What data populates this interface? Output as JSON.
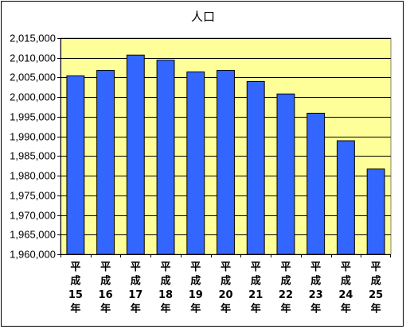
{
  "chart_data": {
    "type": "bar",
    "title": "人口",
    "categories": [
      [
        "平",
        "成",
        "15",
        "年"
      ],
      [
        "平",
        "成",
        "16",
        "年"
      ],
      [
        "平",
        "成",
        "17",
        "年"
      ],
      [
        "平",
        "成",
        "18",
        "年"
      ],
      [
        "平",
        "成",
        "19",
        "年"
      ],
      [
        "平",
        "成",
        "20",
        "年"
      ],
      [
        "平",
        "成",
        "21",
        "年"
      ],
      [
        "平",
        "成",
        "22",
        "年"
      ],
      [
        "平",
        "成",
        "23",
        "年"
      ],
      [
        "平",
        "成",
        "24",
        "年"
      ],
      [
        "平",
        "成",
        "25",
        "年"
      ]
    ],
    "values": [
      2005400,
      2006800,
      2010700,
      2009400,
      2006400,
      2006800,
      2004000,
      2000800,
      1995900,
      1988900,
      1981700
    ],
    "ylim": [
      1960000,
      2015000
    ],
    "yticks": [
      1960000,
      1965000,
      1970000,
      1975000,
      1980000,
      1985000,
      1990000,
      1995000,
      2000000,
      2005000,
      2010000,
      2015000
    ],
    "ytick_labels": [
      "1,960,000",
      "1,965,000",
      "1,970,000",
      "1,975,000",
      "1,980,000",
      "1,985,000",
      "1,990,000",
      "1,995,000",
      "2,000,000",
      "2,005,000",
      "2,010,000",
      "2,015,000"
    ],
    "grid": true,
    "colors": {
      "plot_bg": "#ffff99",
      "bar_fill": "#3366ff",
      "bar_stroke": "#000000",
      "grid": "#000000"
    }
  }
}
